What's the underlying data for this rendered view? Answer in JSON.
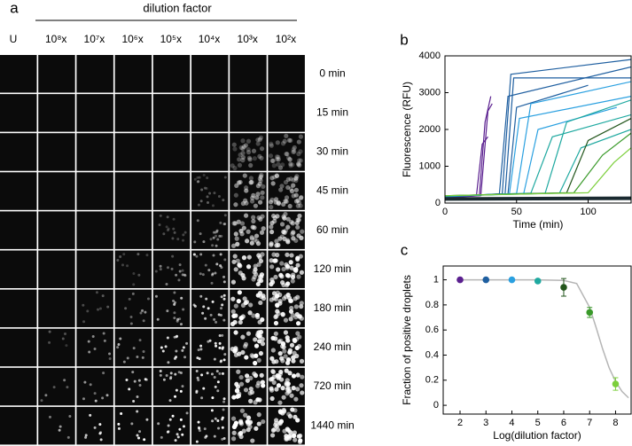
{
  "panel_a": {
    "label": "a",
    "header": "dilution factor",
    "columns": [
      {
        "label": "U",
        "color": "#000000"
      },
      {
        "label": "10⁸x",
        "color": "#7ccf3c"
      },
      {
        "label": "10⁷x",
        "color": "#3a9a2a"
      },
      {
        "label": "10⁶x",
        "color": "#23561c"
      },
      {
        "label": "10⁵x",
        "color": "#1fa9a0"
      },
      {
        "label": "10⁴x",
        "color": "#2aa0e0"
      },
      {
        "label": "10³x",
        "color": "#1f5fa0"
      },
      {
        "label": "10²x",
        "color": "#5a1f8f"
      }
    ],
    "rows": [
      "0 min",
      "15 min",
      "30 min",
      "45 min",
      "60 min",
      "120 min",
      "180 min",
      "240 min",
      "720 min",
      "1440 min"
    ]
  },
  "chart_data": [
    {
      "type": "line",
      "label": "b",
      "xlabel": "Time (min)",
      "ylabel": "Fluorescence (RFU)",
      "xlim": [
        0,
        130
      ],
      "ylim": [
        0,
        4000
      ],
      "xticks": [
        0,
        50,
        100
      ],
      "yticks": [
        0,
        1000,
        2000,
        3000,
        4000
      ],
      "series": [
        {
          "color": "#5a1f8f",
          "x": [
            0,
            24,
            28,
            32
          ],
          "values": [
            150,
            200,
            2200,
            2900
          ]
        },
        {
          "color": "#5a1f8f",
          "x": [
            0,
            22,
            26,
            30
          ],
          "values": [
            160,
            210,
            1600,
            1800
          ]
        },
        {
          "color": "#5a1f8f",
          "x": [
            0,
            25,
            30,
            33
          ],
          "values": [
            140,
            200,
            2500,
            2700
          ]
        },
        {
          "color": "#1f5fa0",
          "x": [
            0,
            40,
            46,
            130
          ],
          "values": [
            170,
            250,
            3500,
            3900
          ]
        },
        {
          "color": "#1f5fa0",
          "x": [
            0,
            38,
            44,
            130
          ],
          "values": [
            170,
            250,
            2900,
            3700
          ]
        },
        {
          "color": "#1f5fa0",
          "x": [
            0,
            42,
            48,
            130
          ],
          "values": [
            170,
            250,
            3400,
            3400
          ]
        },
        {
          "color": "#1f5fa0",
          "x": [
            0,
            44,
            50,
            100
          ],
          "values": [
            170,
            250,
            2600,
            3200
          ]
        },
        {
          "color": "#2aa0e0",
          "x": [
            0,
            45,
            52,
            130
          ],
          "values": [
            180,
            250,
            2300,
            2900
          ]
        },
        {
          "color": "#2aa0e0",
          "x": [
            0,
            50,
            60,
            130
          ],
          "values": [
            180,
            260,
            2700,
            3300
          ]
        },
        {
          "color": "#2aa0e0",
          "x": [
            0,
            55,
            65,
            120
          ],
          "values": [
            180,
            260,
            2000,
            2600
          ]
        },
        {
          "color": "#1fa9a0",
          "x": [
            0,
            60,
            75,
            130
          ],
          "values": [
            190,
            270,
            1800,
            2400
          ]
        },
        {
          "color": "#1fa9a0",
          "x": [
            0,
            70,
            85,
            130
          ],
          "values": [
            190,
            270,
            2200,
            2800
          ]
        },
        {
          "color": "#1fa9a0",
          "x": [
            0,
            80,
            95,
            130
          ],
          "values": [
            190,
            270,
            1500,
            2000
          ]
        },
        {
          "color": "#23561c",
          "x": [
            0,
            85,
            100,
            130
          ],
          "values": [
            200,
            280,
            1700,
            2300
          ]
        },
        {
          "color": "#3a9a2a",
          "x": [
            0,
            90,
            110,
            130
          ],
          "values": [
            200,
            280,
            1300,
            1900
          ]
        },
        {
          "color": "#7ccf3c",
          "x": [
            0,
            100,
            118,
            130
          ],
          "values": [
            200,
            280,
            1100,
            1500
          ]
        },
        {
          "color": "#1a2a30",
          "x": [
            0,
            130
          ],
          "values": [
            110,
            130
          ]
        }
      ]
    },
    {
      "type": "scatter",
      "label": "c",
      "xlabel": "Log(dilution factor)",
      "ylabel": "Fraction of positive droplets",
      "xlim": [
        1.35,
        8.6
      ],
      "ylim": [
        -0.07,
        1.11
      ],
      "xticks": [
        2,
        3,
        4,
        5,
        6,
        7,
        8
      ],
      "yticks": [
        0,
        0.2,
        0.4,
        0.6,
        0.8,
        1
      ],
      "x": [
        2,
        3,
        4,
        5,
        6,
        7,
        8
      ],
      "values": [
        1,
        1,
        1,
        0.99,
        0.94,
        0.74,
        0.17
      ],
      "errors": [
        0,
        0,
        0,
        0.01,
        0.07,
        0.04,
        0.05
      ],
      "colors": [
        "#5a1f8f",
        "#1f5fa0",
        "#2aa0e0",
        "#1fa9a0",
        "#23561c",
        "#3a9a2a",
        "#7ccf3c"
      ],
      "fit": {
        "color": "#b5b5b5",
        "x": [
          2,
          5,
          6,
          6.5,
          7,
          7.25,
          7.5,
          7.75,
          8,
          8.25,
          8.5
        ],
        "values": [
          1,
          1,
          0.995,
          0.97,
          0.78,
          0.62,
          0.45,
          0.3,
          0.19,
          0.11,
          0.06
        ]
      }
    }
  ]
}
